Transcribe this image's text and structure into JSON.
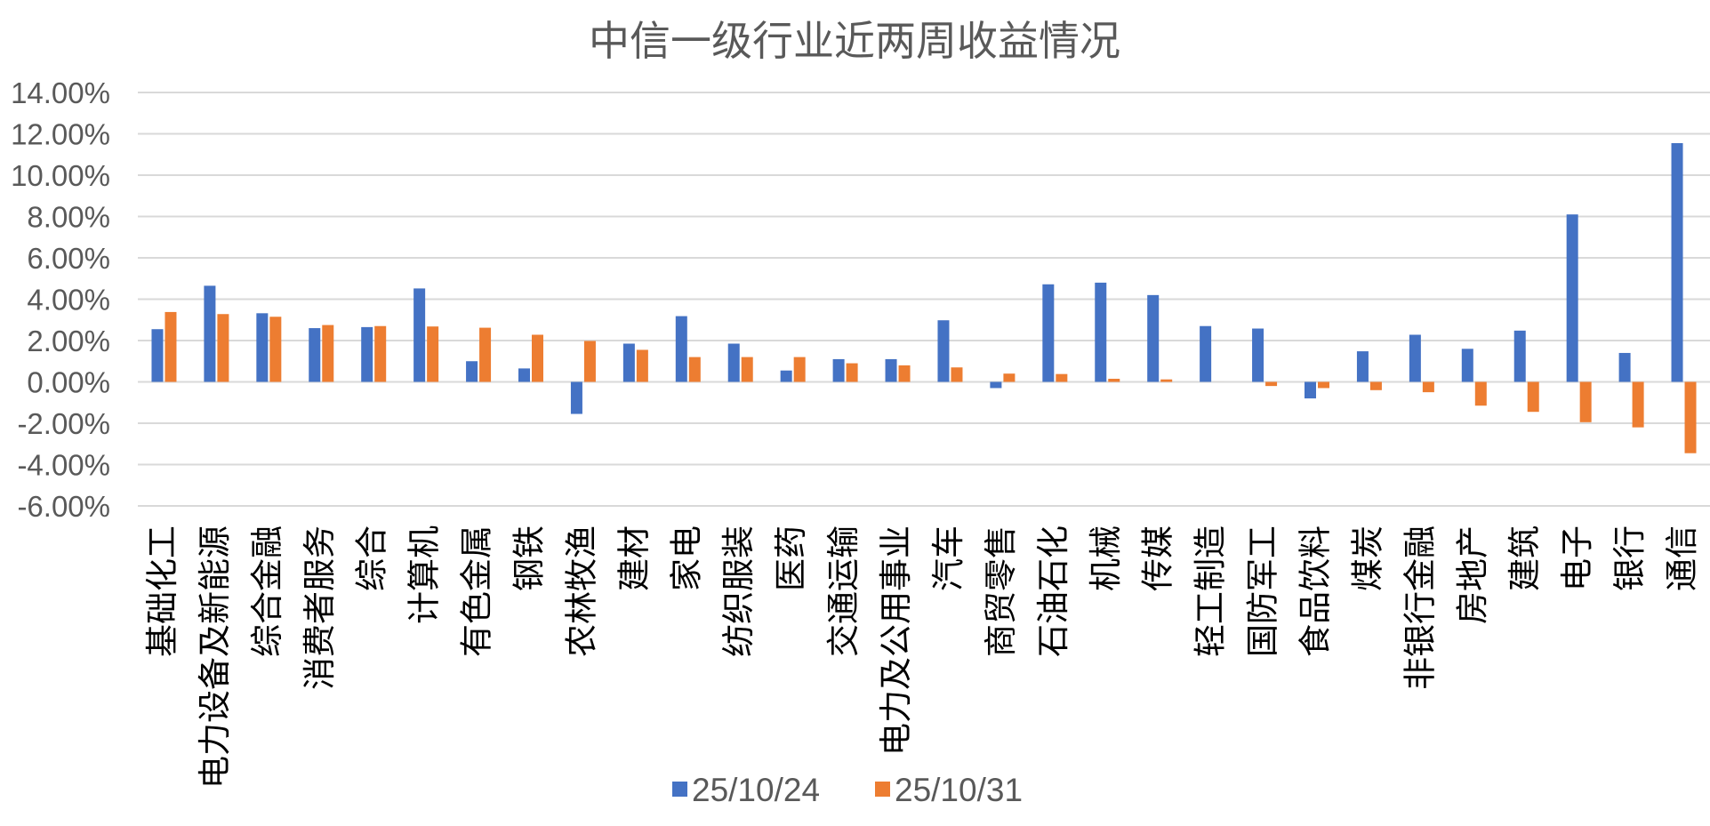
{
  "chart_data": {
    "type": "bar",
    "title": "中信一级行业近两周收益情况",
    "xlabel": "",
    "ylabel": "",
    "ylim": [
      -0.06,
      0.14
    ],
    "y_tick_values": [
      -0.06,
      -0.04,
      -0.02,
      0.0,
      0.02,
      0.04,
      0.06,
      0.08,
      0.1,
      0.12,
      0.14
    ],
    "y_tick_labels": [
      "-6.00%",
      "-4.00%",
      "-2.00%",
      "0.00%",
      "2.00%",
      "4.00%",
      "6.00%",
      "8.00%",
      "10.00%",
      "12.00%",
      "14.00%"
    ],
    "grid": true,
    "legend_position": "bottom",
    "categories": [
      "基础化工",
      "电力设备及新能源",
      "综合金融",
      "消费者服务",
      "综合",
      "计算机",
      "有色金属",
      "钢铁",
      "农林牧渔",
      "建材",
      "家电",
      "纺织服装",
      "医药",
      "交通运输",
      "电力及公用事业",
      "汽车",
      "商贸零售",
      "石油石化",
      "机械",
      "传媒",
      "轻工制造",
      "国防军工",
      "食品饮料",
      "煤炭",
      "非银行金融",
      "房地产",
      "建筑",
      "电子",
      "银行",
      "通信"
    ],
    "series": [
      {
        "name": "25/10/24",
        "color": "#4472C4",
        "values": [
          0.0255,
          0.0465,
          0.0332,
          0.026,
          0.0265,
          0.0452,
          0.01,
          0.0065,
          -0.0155,
          0.0185,
          0.0318,
          0.0185,
          0.0055,
          0.011,
          0.011,
          0.0298,
          -0.003,
          0.0472,
          0.048,
          0.042,
          0.027,
          0.0258,
          -0.008,
          0.0148,
          0.0228,
          0.016,
          0.0248,
          0.081,
          0.014,
          0.1155
        ]
      },
      {
        "name": "25/10/31",
        "color": "#ED7D31",
        "values": [
          0.0338,
          0.0328,
          0.0315,
          0.0275,
          0.027,
          0.0268,
          0.0262,
          0.0228,
          0.0198,
          0.0155,
          0.012,
          0.012,
          0.012,
          0.009,
          0.008,
          0.007,
          0.004,
          0.0038,
          0.0015,
          0.0012,
          0.0,
          -0.002,
          -0.003,
          -0.004,
          -0.005,
          -0.0115,
          -0.0145,
          -0.0195,
          -0.022,
          -0.0345
        ]
      }
    ]
  }
}
